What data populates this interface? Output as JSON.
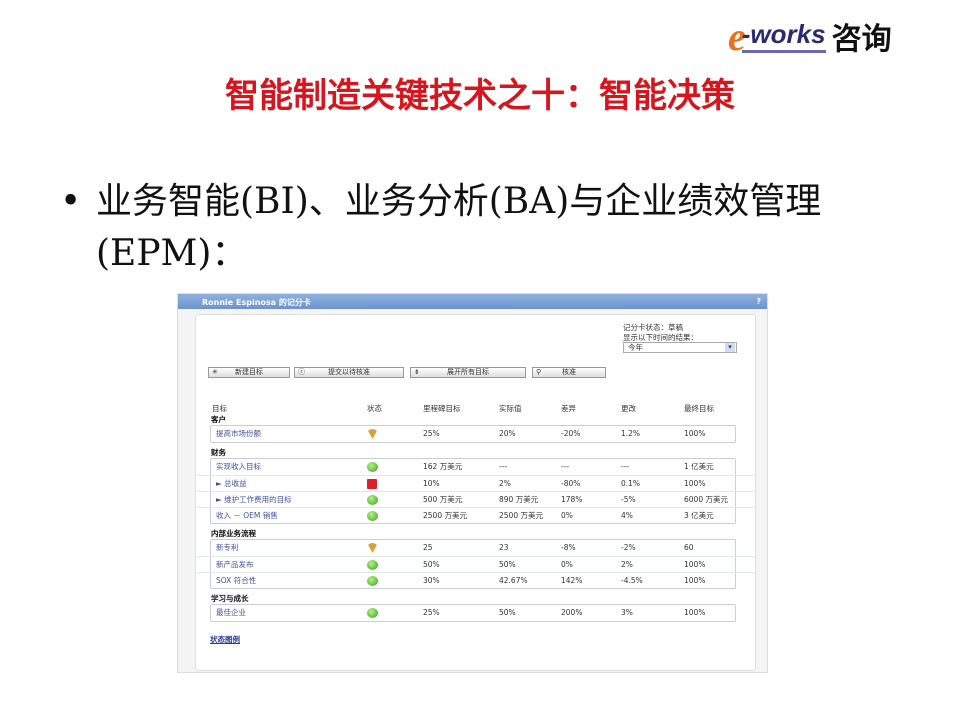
{
  "logo": {
    "e": "e",
    "works": "-works",
    "consult": "咨询"
  },
  "slide": {
    "title": "智能制造关键技术之十：智能决策",
    "bullet": "业务智能(BI)、业务分析(BA)与企业绩效管理(EPM)："
  },
  "window": {
    "title": "Ronnie Espinosa 的记分卡",
    "help": "?"
  },
  "scorecard": {
    "status_label": "记分卡状态：草稿",
    "period_label": "显示以下时间的结果：",
    "period_value": "今年",
    "buttons": [
      {
        "icon": "✳",
        "label": "新建目标"
      },
      {
        "icon": "ⓡ",
        "label": "提交以待核准"
      },
      {
        "icon": "⇟",
        "label": "展开所有目标"
      },
      {
        "icon": "⚲",
        "label": "核准"
      }
    ],
    "columns": [
      "目标",
      "状态",
      "里程碑目标",
      "实际值",
      "差异",
      "更改",
      "最终目标"
    ],
    "sections": [
      {
        "name": "客户",
        "rows": [
          {
            "goal": "提高市场份额",
            "status": "yellow",
            "milestone": "25%",
            "actual": "20%",
            "variance": "-20%",
            "change": "1.2%",
            "final": "100%"
          }
        ]
      },
      {
        "name": "财务",
        "rows": [
          {
            "goal": "实现收入目标",
            "status": "green",
            "milestone": "162 万美元",
            "actual": "---",
            "variance": "---",
            "change": "---",
            "final": "1 亿美元"
          },
          {
            "goal": "► 总收益",
            "status": "red",
            "milestone": "10%",
            "actual": "2%",
            "variance": "-80%",
            "change": "0.1%",
            "final": "100%"
          },
          {
            "goal": "► 维护工作费用的目标",
            "status": "green",
            "milestone": "500 万美元",
            "actual": "890 万美元",
            "variance": "178%",
            "change": "-5%",
            "final": "6000 万美元"
          },
          {
            "goal": "收入 － OEM 销售",
            "status": "green",
            "milestone": "2500 万美元",
            "actual": "2500 万美元",
            "variance": "0%",
            "change": "4%",
            "final": "3 亿美元"
          }
        ]
      },
      {
        "name": "内部业务流程",
        "rows": [
          {
            "goal": "新专利",
            "status": "yellow",
            "milestone": "25",
            "actual": "23",
            "variance": "-8%",
            "change": "-2%",
            "final": "60"
          },
          {
            "goal": "新产品发布",
            "status": "green",
            "milestone": "50%",
            "actual": "50%",
            "variance": "0%",
            "change": "2%",
            "final": "100%"
          },
          {
            "goal": "SOX 符合性",
            "status": "green",
            "milestone": "30%",
            "actual": "42.67%",
            "variance": "142%",
            "change": "-4.5%",
            "final": "100%"
          }
        ]
      },
      {
        "name": "学习与成长",
        "rows": [
          {
            "goal": "最佳企业",
            "status": "green",
            "milestone": "25%",
            "actual": "50%",
            "variance": "200%",
            "change": "3%",
            "final": "100%"
          }
        ]
      }
    ],
    "legend_link": "状态图例"
  }
}
